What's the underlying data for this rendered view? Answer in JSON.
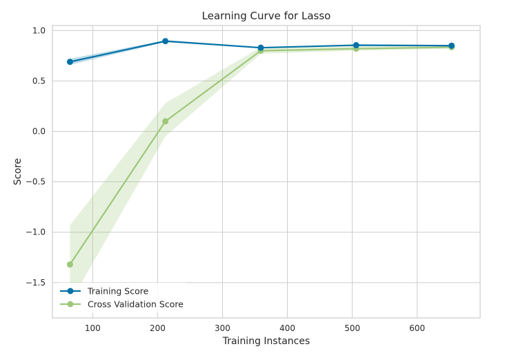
{
  "chart_data": {
    "type": "line",
    "title": "Learning Curve for Lasso",
    "xlabel": "Training Instances",
    "ylabel": "Score",
    "xlim": [
      38,
      697
    ],
    "ylim": [
      -1.85,
      1.05
    ],
    "x_ticks": [
      100,
      200,
      300,
      400,
      500,
      600
    ],
    "y_ticks": [
      1.0,
      0.5,
      0.0,
      -0.5,
      -1.0,
      -1.5
    ],
    "x_tick_labels": [
      "100",
      "200",
      "300",
      "400",
      "500",
      "600"
    ],
    "y_tick_labels": [
      "1.0",
      "0.5",
      "0.0",
      "−0.5",
      "−1.0",
      "−1.5"
    ],
    "grid": true,
    "legend_position": "lower-left",
    "series": [
      {
        "name": "Training Score",
        "color": "#0072a7",
        "x": [
          65,
          212,
          359,
          506,
          653
        ],
        "y": [
          0.69,
          0.895,
          0.83,
          0.855,
          0.85
        ],
        "band_upper": [
          0.72,
          0.905,
          0.835,
          0.86,
          0.855
        ],
        "band_lower": [
          0.66,
          0.885,
          0.825,
          0.85,
          0.845
        ]
      },
      {
        "name": "Cross Validation Score",
        "color": "#9dc779",
        "x": [
          65,
          212,
          359,
          506,
          653
        ],
        "y": [
          -1.32,
          0.1,
          0.8,
          0.82,
          0.835
        ],
        "band_upper": [
          -0.93,
          0.28,
          0.835,
          0.845,
          0.855
        ],
        "band_lower": [
          -1.7,
          -0.05,
          0.77,
          0.8,
          0.82
        ]
      }
    ]
  }
}
